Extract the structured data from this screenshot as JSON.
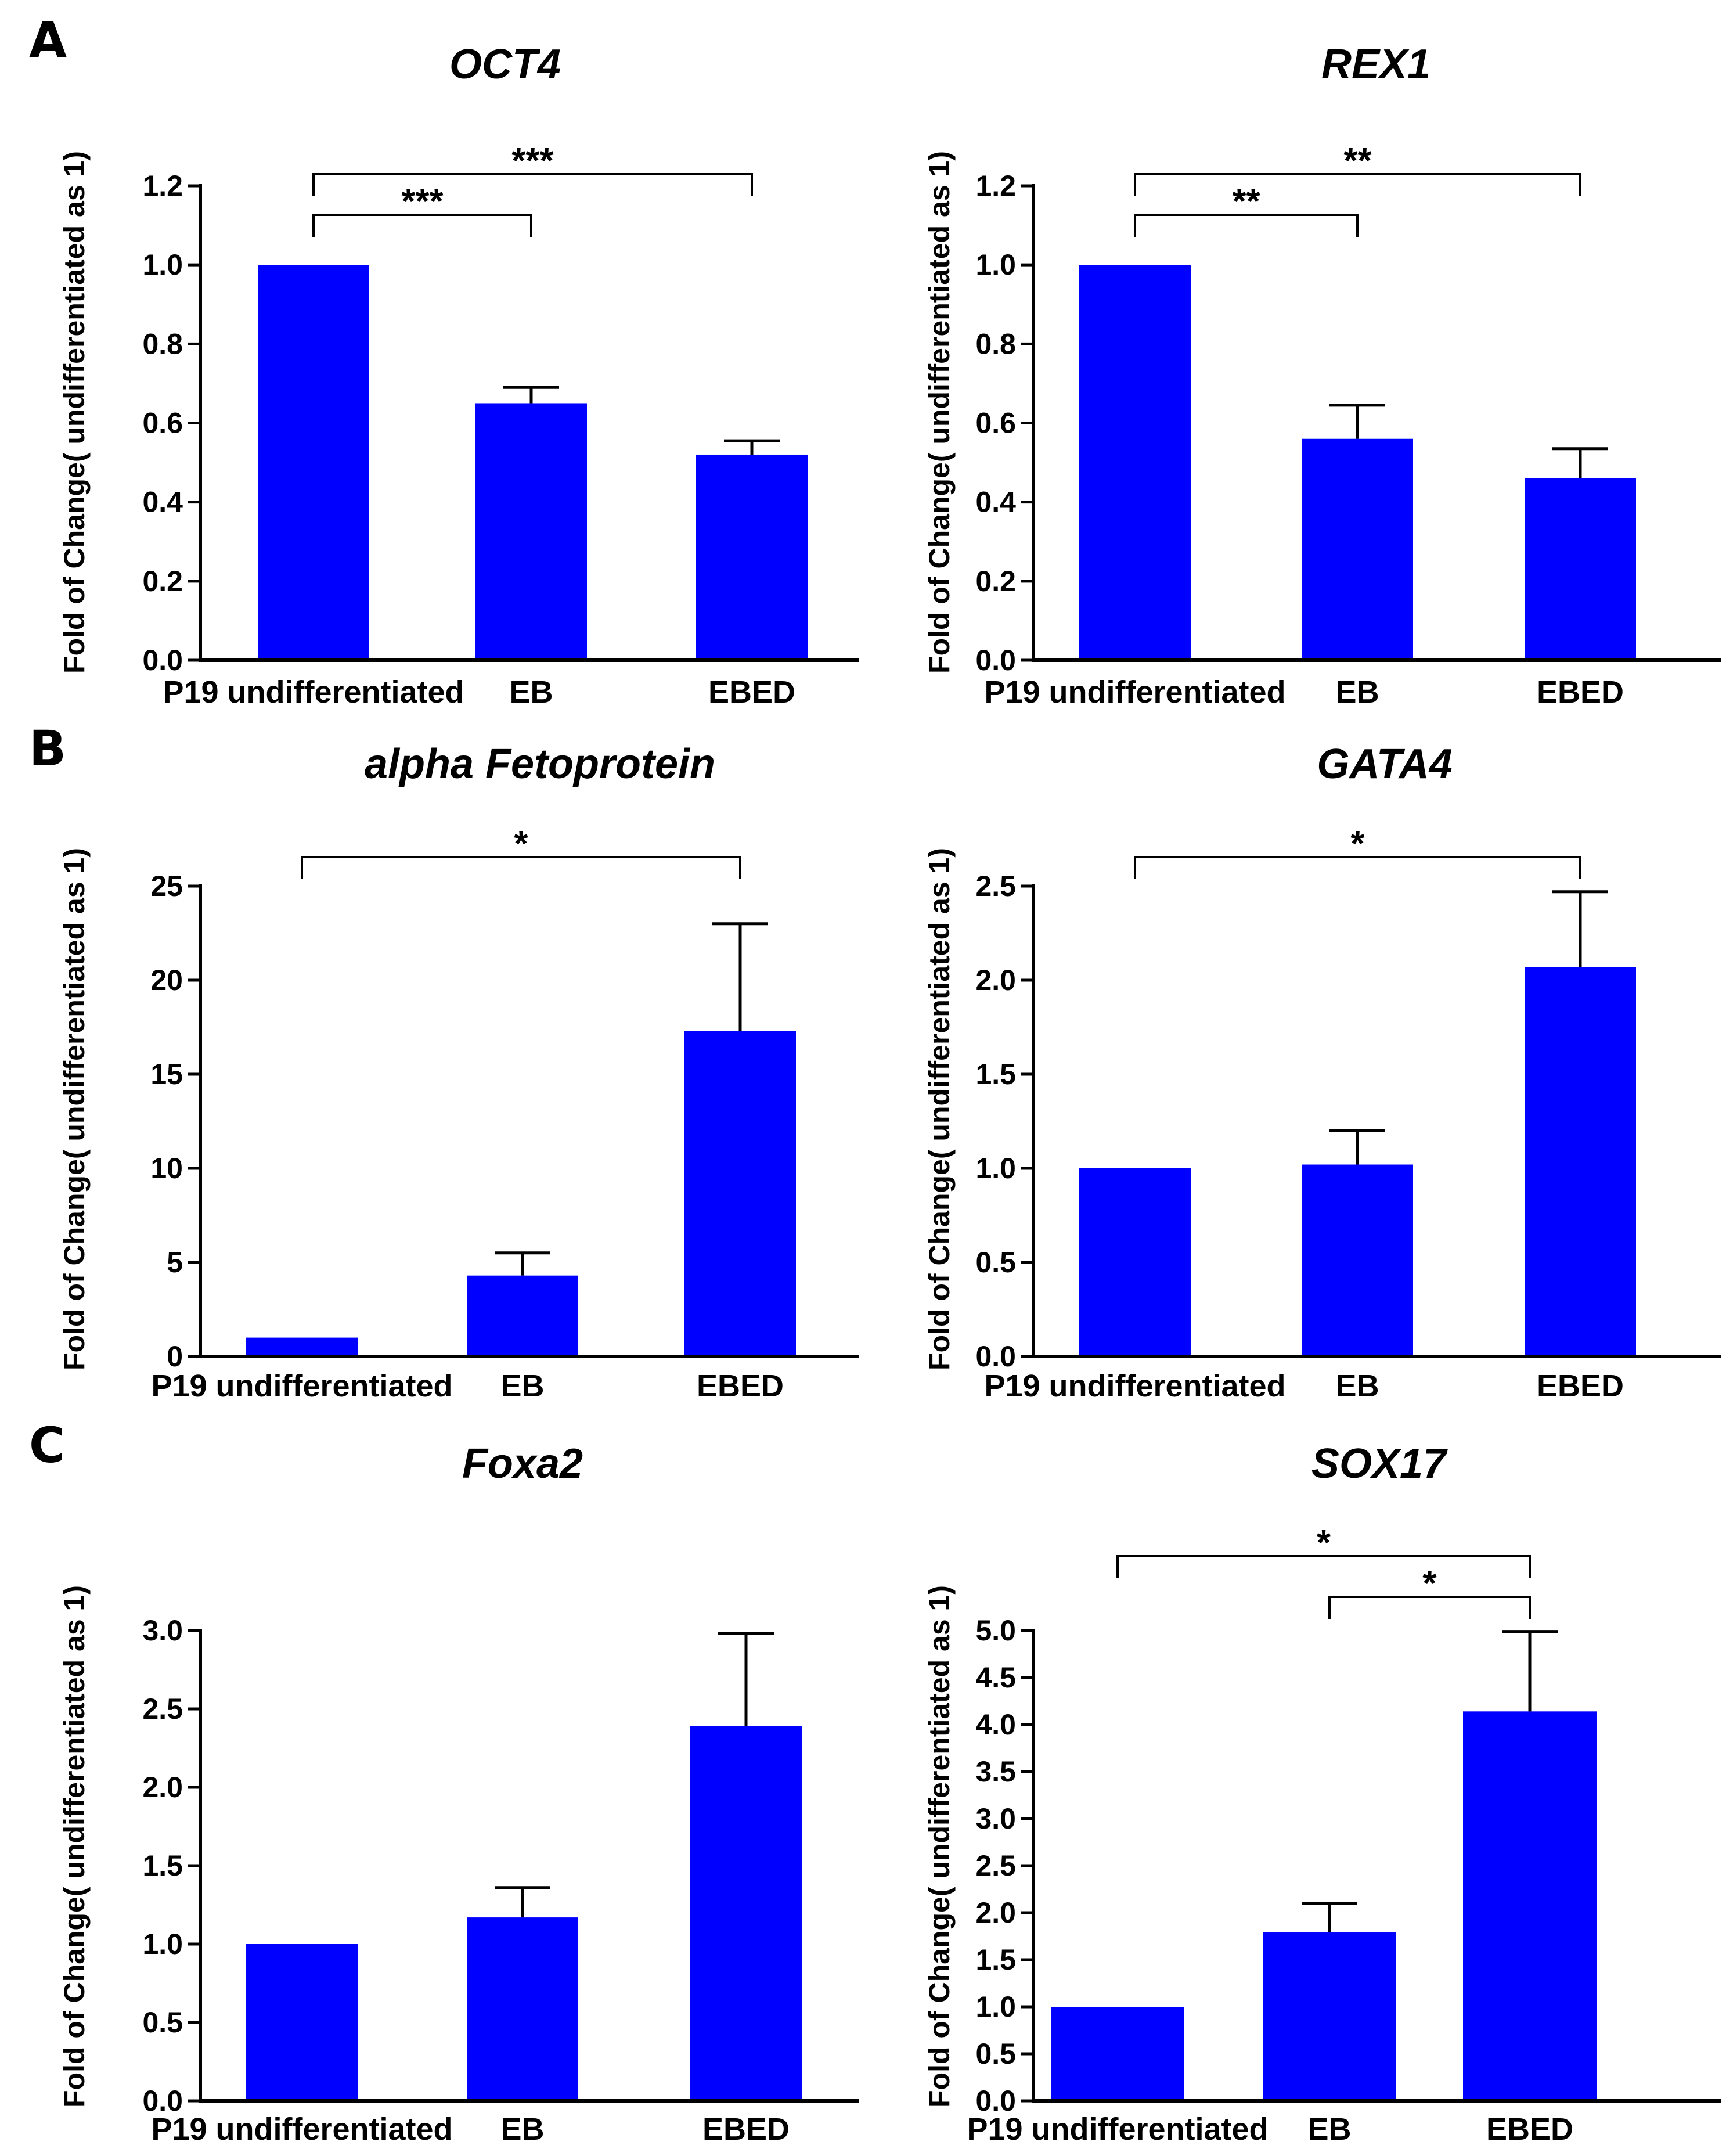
{
  "panels": {
    "a": "A",
    "b": "B",
    "c": "C"
  },
  "colors": {
    "bar": "#0000FF",
    "axis": "#000000"
  },
  "chart_data": [
    {
      "type": "bar",
      "title": "OCT4",
      "ylabel": "Fold of Change( undifferentiated as 1)",
      "categories": [
        "P19 undifferentiated",
        "EB",
        "EBED"
      ],
      "values": [
        1.0,
        0.65,
        0.52
      ],
      "errors": [
        0,
        0.04,
        0.035
      ],
      "ylim": [
        0,
        1.2
      ],
      "ticks": [
        "0.0",
        "0.2",
        "0.4",
        "0.6",
        "0.8",
        "1.0",
        "1.2"
      ],
      "significance": [
        {
          "from": 0,
          "to": 1,
          "label": "***"
        },
        {
          "from": 0,
          "to": 2,
          "label": "***"
        }
      ]
    },
    {
      "type": "bar",
      "title": "REX1",
      "ylabel": "Fold of Change( undifferentiated as 1)",
      "categories": [
        "P19 undifferentiated",
        "EB",
        "EBED"
      ],
      "values": [
        1.0,
        0.56,
        0.46
      ],
      "errors": [
        0,
        0.085,
        0.075
      ],
      "ylim": [
        0,
        1.2
      ],
      "ticks": [
        "0.0",
        "0.2",
        "0.4",
        "0.6",
        "0.8",
        "1.0",
        "1.2"
      ],
      "significance": [
        {
          "from": 0,
          "to": 1,
          "label": "**"
        },
        {
          "from": 0,
          "to": 2,
          "label": "**"
        }
      ]
    },
    {
      "type": "bar",
      "title": "alpha Fetoprotein",
      "ylabel": "Fold of Change( undifferentiated as 1)",
      "categories": [
        "P19 undifferentiated",
        "EB",
        "EBED"
      ],
      "values": [
        1.0,
        4.3,
        17.3
      ],
      "errors": [
        0,
        1.2,
        5.7
      ],
      "ylim": [
        0,
        25
      ],
      "ticks": [
        "0",
        "5",
        "10",
        "15",
        "20",
        "25"
      ],
      "significance": [
        {
          "from": 0,
          "to": 2,
          "label": "*"
        }
      ]
    },
    {
      "type": "bar",
      "title": "GATA4",
      "ylabel": "Fold of Change( undifferentiated as 1)",
      "categories": [
        "P19 undifferentiated",
        "EB",
        "EBED"
      ],
      "values": [
        1.0,
        1.02,
        2.07
      ],
      "errors": [
        0,
        0.18,
        0.4
      ],
      "ylim": [
        0,
        2.5
      ],
      "ticks": [
        "0.0",
        "0.5",
        "1.0",
        "1.5",
        "2.0",
        "2.5"
      ],
      "significance": [
        {
          "from": 0,
          "to": 2,
          "label": "*"
        }
      ]
    },
    {
      "type": "bar",
      "title": "Foxa2",
      "ylabel": "Fold of Change( undifferentiated as 1)",
      "categories": [
        "P19 undifferentiated",
        "EB",
        "EBED"
      ],
      "values": [
        1.0,
        1.17,
        2.39
      ],
      "errors": [
        0,
        0.19,
        0.59
      ],
      "ylim": [
        0,
        3.0
      ],
      "ticks": [
        "0.0",
        "0.5",
        "1.0",
        "1.5",
        "2.0",
        "2.5",
        "3.0"
      ],
      "significance": []
    },
    {
      "type": "bar",
      "title": "SOX17",
      "ylabel": "Fold of Change( undifferentiated as 1)",
      "categories": [
        "P19 undifferentiated",
        "EB",
        "EBED"
      ],
      "values": [
        1.0,
        1.79,
        4.14
      ],
      "errors": [
        0,
        0.31,
        0.85
      ],
      "ylim": [
        0,
        5.0
      ],
      "ticks": [
        "0.0",
        "0.5",
        "1.0",
        "1.5",
        "2.0",
        "2.5",
        "3.0",
        "3.5",
        "4.0",
        "4.5",
        "5.0"
      ],
      "significance": [
        {
          "from": 0,
          "to": 2,
          "label": "*"
        },
        {
          "from": 1,
          "to": 2,
          "label": "*"
        }
      ]
    }
  ]
}
